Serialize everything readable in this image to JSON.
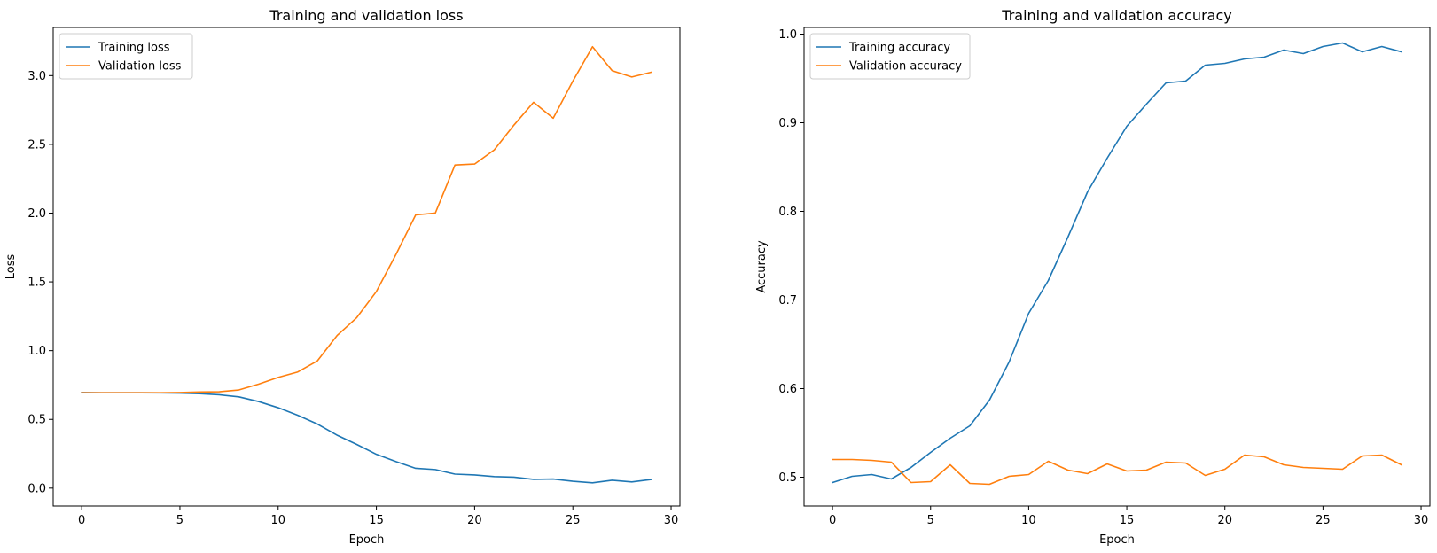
{
  "chart_data": [
    {
      "type": "line",
      "title": "Training and validation loss",
      "xlabel": "Epoch",
      "ylabel": "Loss",
      "xlim": [
        -1.45,
        30.45
      ],
      "ylim": [
        -0.13,
        3.35
      ],
      "xticks": [
        0,
        5,
        10,
        15,
        20,
        25,
        30
      ],
      "yticks": [
        0.0,
        0.5,
        1.0,
        1.5,
        2.0,
        2.5,
        3.0
      ],
      "ytick_labels": [
        "0.0",
        "0.5",
        "1.0",
        "1.5",
        "2.0",
        "2.5",
        "3.0"
      ],
      "grid": false,
      "legend_loc": "upper left",
      "x": [
        0,
        1,
        2,
        3,
        4,
        5,
        6,
        7,
        8,
        9,
        10,
        11,
        12,
        13,
        14,
        15,
        16,
        17,
        18,
        19,
        20,
        21,
        22,
        23,
        24,
        25,
        26,
        27,
        28,
        29
      ],
      "series": [
        {
          "name": "Training loss",
          "color": "#1f77b4",
          "values": [
            0.695,
            0.694,
            0.694,
            0.694,
            0.693,
            0.691,
            0.687,
            0.679,
            0.664,
            0.63,
            0.585,
            0.53,
            0.466,
            0.385,
            0.318,
            0.246,
            0.193,
            0.144,
            0.135,
            0.102,
            0.096,
            0.084,
            0.08,
            0.064,
            0.066,
            0.05,
            0.039,
            0.057,
            0.045,
            0.063
          ]
        },
        {
          "name": "Validation loss",
          "color": "#ff7f0e",
          "values": [
            0.694,
            0.694,
            0.694,
            0.694,
            0.694,
            0.695,
            0.699,
            0.701,
            0.714,
            0.756,
            0.805,
            0.845,
            0.926,
            1.11,
            1.24,
            1.43,
            1.7,
            1.987,
            2.0,
            2.35,
            2.357,
            2.46,
            2.64,
            2.806,
            2.69,
            2.96,
            3.21,
            3.036,
            2.99,
            3.025
          ]
        }
      ]
    },
    {
      "type": "line",
      "title": "Training and validation accuracy",
      "xlabel": "Epoch",
      "ylabel": "Accuracy",
      "xlim": [
        -1.45,
        30.45
      ],
      "ylim": [
        0.4675,
        1.0075
      ],
      "xticks": [
        0,
        5,
        10,
        15,
        20,
        25,
        30
      ],
      "yticks": [
        0.5,
        0.6,
        0.7,
        0.8,
        0.9,
        1.0
      ],
      "ytick_labels": [
        "0.5",
        "0.6",
        "0.7",
        "0.8",
        "0.9",
        "1.0"
      ],
      "grid": false,
      "legend_loc": "upper left",
      "x": [
        0,
        1,
        2,
        3,
        4,
        5,
        6,
        7,
        8,
        9,
        10,
        11,
        12,
        13,
        14,
        15,
        16,
        17,
        18,
        19,
        20,
        21,
        22,
        23,
        24,
        25,
        26,
        27,
        28,
        29
      ],
      "series": [
        {
          "name": "Training accuracy",
          "color": "#1f77b4",
          "values": [
            0.494,
            0.501,
            0.503,
            0.498,
            0.511,
            0.528,
            0.544,
            0.558,
            0.587,
            0.63,
            0.685,
            0.722,
            0.771,
            0.822,
            0.86,
            0.896,
            0.921,
            0.945,
            0.947,
            0.965,
            0.967,
            0.972,
            0.974,
            0.982,
            0.978,
            0.986,
            0.99,
            0.98,
            0.986,
            0.98
          ]
        },
        {
          "name": "Validation accuracy",
          "color": "#ff7f0e",
          "values": [
            0.52,
            0.52,
            0.519,
            0.517,
            0.494,
            0.495,
            0.514,
            0.493,
            0.492,
            0.501,
            0.503,
            0.518,
            0.508,
            0.504,
            0.515,
            0.507,
            0.508,
            0.517,
            0.516,
            0.502,
            0.509,
            0.525,
            0.523,
            0.514,
            0.511,
            0.51,
            0.509,
            0.524,
            0.525,
            0.514
          ]
        }
      ]
    }
  ]
}
